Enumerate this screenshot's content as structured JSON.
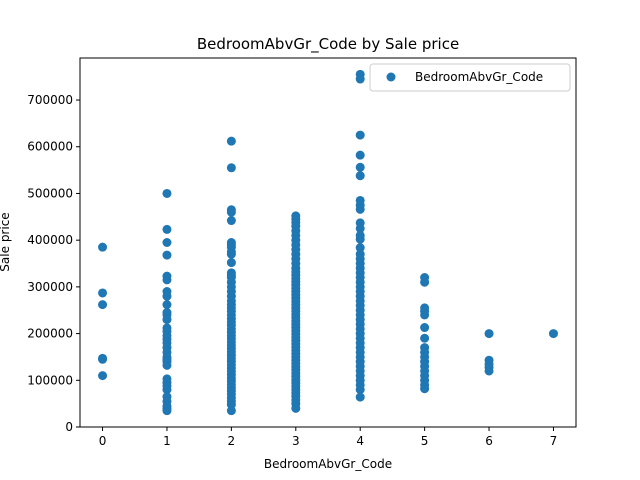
{
  "chart_data": {
    "type": "scatter",
    "title": "BedroomAbvGr_Code by Sale price",
    "xlabel": "BedroomAbvGr_Code",
    "ylabel": "Sale price",
    "xlim": [
      -0.35,
      7.35
    ],
    "ylim": [
      0,
      790000
    ],
    "x_ticks": [
      0,
      1,
      2,
      3,
      4,
      5,
      6,
      7
    ],
    "y_ticks": [
      0,
      100000,
      200000,
      300000,
      400000,
      500000,
      600000,
      700000
    ],
    "grid": false,
    "legend": "top-right",
    "color": "#1f77b4",
    "series": [
      {
        "name": "BedroomAbvGr_Code",
        "points": [
          [
            0,
            385000
          ],
          [
            0,
            287000
          ],
          [
            0,
            262000
          ],
          [
            0,
            147000
          ],
          [
            0,
            145000
          ],
          [
            0,
            110000
          ],
          [
            1,
            500000
          ],
          [
            1,
            423000
          ],
          [
            1,
            395000
          ],
          [
            1,
            368000
          ],
          [
            1,
            323000
          ],
          [
            1,
            315000
          ],
          [
            1,
            290000
          ],
          [
            1,
            280000
          ],
          [
            1,
            262000
          ],
          [
            1,
            245000
          ],
          [
            1,
            240000
          ],
          [
            1,
            230000
          ],
          [
            1,
            212000
          ],
          [
            1,
            205000
          ],
          [
            1,
            196000
          ],
          [
            1,
            188000
          ],
          [
            1,
            180000
          ],
          [
            1,
            170000
          ],
          [
            1,
            160000
          ],
          [
            1,
            150000
          ],
          [
            1,
            145000
          ],
          [
            1,
            140000
          ],
          [
            1,
            132000
          ],
          [
            1,
            103000
          ],
          [
            1,
            95000
          ],
          [
            1,
            88000
          ],
          [
            1,
            80000
          ],
          [
            1,
            65000
          ],
          [
            1,
            55000
          ],
          [
            1,
            45000
          ],
          [
            1,
            40000
          ],
          [
            1,
            35000
          ],
          [
            2,
            612000
          ],
          [
            2,
            555000
          ],
          [
            2,
            465000
          ],
          [
            2,
            460000
          ],
          [
            2,
            442000
          ],
          [
            2,
            395000
          ],
          [
            2,
            390000
          ],
          [
            2,
            385000
          ],
          [
            2,
            375000
          ],
          [
            2,
            370000
          ],
          [
            2,
            352000
          ],
          [
            2,
            330000
          ],
          [
            2,
            325000
          ],
          [
            2,
            320000
          ],
          [
            2,
            310000
          ],
          [
            2,
            300000
          ],
          [
            2,
            290000
          ],
          [
            2,
            280000
          ],
          [
            2,
            270000
          ],
          [
            2,
            262000
          ],
          [
            2,
            255000
          ],
          [
            2,
            248000
          ],
          [
            2,
            240000
          ],
          [
            2,
            232000
          ],
          [
            2,
            225000
          ],
          [
            2,
            218000
          ],
          [
            2,
            210000
          ],
          [
            2,
            203000
          ],
          [
            2,
            196000
          ],
          [
            2,
            189000
          ],
          [
            2,
            182000
          ],
          [
            2,
            175000
          ],
          [
            2,
            168000
          ],
          [
            2,
            161000
          ],
          [
            2,
            154000
          ],
          [
            2,
            147000
          ],
          [
            2,
            140000
          ],
          [
            2,
            133000
          ],
          [
            2,
            126000
          ],
          [
            2,
            119000
          ],
          [
            2,
            112000
          ],
          [
            2,
            105000
          ],
          [
            2,
            98000
          ],
          [
            2,
            91000
          ],
          [
            2,
            84000
          ],
          [
            2,
            77000
          ],
          [
            2,
            70000
          ],
          [
            2,
            62000
          ],
          [
            2,
            55000
          ],
          [
            2,
            48000
          ],
          [
            2,
            35000
          ],
          [
            3,
            452000
          ],
          [
            3,
            445000
          ],
          [
            3,
            438000
          ],
          [
            3,
            430000
          ],
          [
            3,
            420000
          ],
          [
            3,
            410000
          ],
          [
            3,
            400000
          ],
          [
            3,
            390000
          ],
          [
            3,
            380000
          ],
          [
            3,
            370000
          ],
          [
            3,
            360000
          ],
          [
            3,
            350000
          ],
          [
            3,
            340000
          ],
          [
            3,
            332000
          ],
          [
            3,
            325000
          ],
          [
            3,
            318000
          ],
          [
            3,
            311000
          ],
          [
            3,
            304000
          ],
          [
            3,
            297000
          ],
          [
            3,
            290000
          ],
          [
            3,
            283000
          ],
          [
            3,
            276000
          ],
          [
            3,
            269000
          ],
          [
            3,
            262000
          ],
          [
            3,
            255000
          ],
          [
            3,
            248000
          ],
          [
            3,
            241000
          ],
          [
            3,
            234000
          ],
          [
            3,
            227000
          ],
          [
            3,
            220000
          ],
          [
            3,
            213000
          ],
          [
            3,
            206000
          ],
          [
            3,
            199000
          ],
          [
            3,
            192000
          ],
          [
            3,
            185000
          ],
          [
            3,
            178000
          ],
          [
            3,
            171000
          ],
          [
            3,
            164000
          ],
          [
            3,
            157000
          ],
          [
            3,
            150000
          ],
          [
            3,
            143000
          ],
          [
            3,
            136000
          ],
          [
            3,
            129000
          ],
          [
            3,
            122000
          ],
          [
            3,
            115000
          ],
          [
            3,
            108000
          ],
          [
            3,
            101000
          ],
          [
            3,
            94000
          ],
          [
            3,
            87000
          ],
          [
            3,
            80000
          ],
          [
            3,
            73000
          ],
          [
            3,
            66000
          ],
          [
            3,
            58000
          ],
          [
            3,
            50000
          ],
          [
            3,
            40000
          ],
          [
            4,
            755000
          ],
          [
            4,
            745000
          ],
          [
            4,
            625000
          ],
          [
            4,
            582000
          ],
          [
            4,
            556000
          ],
          [
            4,
            538000
          ],
          [
            4,
            485000
          ],
          [
            4,
            475000
          ],
          [
            4,
            466000
          ],
          [
            4,
            437000
          ],
          [
            4,
            425000
          ],
          [
            4,
            410000
          ],
          [
            4,
            402000
          ],
          [
            4,
            384000
          ],
          [
            4,
            370000
          ],
          [
            4,
            360000
          ],
          [
            4,
            350000
          ],
          [
            4,
            340000
          ],
          [
            4,
            330000
          ],
          [
            4,
            320000
          ],
          [
            4,
            310000
          ],
          [
            4,
            300000
          ],
          [
            4,
            290000
          ],
          [
            4,
            280000
          ],
          [
            4,
            270000
          ],
          [
            4,
            260000
          ],
          [
            4,
            250000
          ],
          [
            4,
            240000
          ],
          [
            4,
            230000
          ],
          [
            4,
            220000
          ],
          [
            4,
            210000
          ],
          [
            4,
            200000
          ],
          [
            4,
            190000
          ],
          [
            4,
            180000
          ],
          [
            4,
            170000
          ],
          [
            4,
            160000
          ],
          [
            4,
            150000
          ],
          [
            4,
            140000
          ],
          [
            4,
            130000
          ],
          [
            4,
            120000
          ],
          [
            4,
            110000
          ],
          [
            4,
            100000
          ],
          [
            4,
            90000
          ],
          [
            4,
            80000
          ],
          [
            4,
            64000
          ],
          [
            5,
            320000
          ],
          [
            5,
            310000
          ],
          [
            5,
            255000
          ],
          [
            5,
            248000
          ],
          [
            5,
            240000
          ],
          [
            5,
            213000
          ],
          [
            5,
            190000
          ],
          [
            5,
            170000
          ],
          [
            5,
            160000
          ],
          [
            5,
            150000
          ],
          [
            5,
            140000
          ],
          [
            5,
            130000
          ],
          [
            5,
            120000
          ],
          [
            5,
            110000
          ],
          [
            5,
            100000
          ],
          [
            5,
            90000
          ],
          [
            5,
            82000
          ],
          [
            6,
            200000
          ],
          [
            6,
            143000
          ],
          [
            6,
            135000
          ],
          [
            6,
            128000
          ],
          [
            6,
            120000
          ],
          [
            7,
            200000
          ]
        ]
      }
    ]
  }
}
